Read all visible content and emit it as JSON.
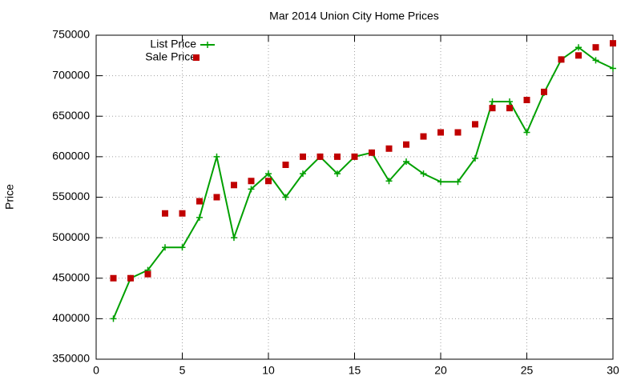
{
  "chart_data": {
    "type": "line",
    "title": "Mar 2014 Union City Home Prices",
    "y_label": "Price",
    "x": [
      1,
      2,
      3,
      4,
      5,
      6,
      7,
      8,
      9,
      10,
      11,
      12,
      13,
      14,
      15,
      16,
      17,
      18,
      19,
      20,
      21,
      22,
      23,
      24,
      25,
      26,
      27,
      28,
      29,
      30
    ],
    "series": [
      {
        "name": "List Price",
        "color": "#00a000",
        "style": "linespoints",
        "values": [
          400000,
          450000,
          460000,
          488000,
          488000,
          525000,
          600000,
          500000,
          560000,
          579000,
          550000,
          579000,
          600000,
          579000,
          600000,
          605000,
          570000,
          594000,
          579000,
          569000,
          569000,
          598000,
          668000,
          668000,
          630000,
          679000,
          720000,
          735000,
          719000,
          709000
        ]
      },
      {
        "name": "Sale Price",
        "color": "#c00000",
        "style": "points",
        "values": [
          450000,
          450000,
          455000,
          530000,
          530000,
          545000,
          550000,
          565000,
          570000,
          570000,
          590000,
          600000,
          600000,
          600000,
          600000,
          605000,
          610000,
          615000,
          625000,
          630000,
          630000,
          640000,
          660000,
          660000,
          670000,
          680000,
          720000,
          725000,
          735000,
          740000
        ]
      }
    ],
    "xlim": [
      0,
      30
    ],
    "xticks": [
      0,
      5,
      10,
      15,
      20,
      25,
      30
    ],
    "ylim": [
      350000,
      750000
    ],
    "yticks": [
      350000,
      400000,
      450000,
      500000,
      550000,
      600000,
      650000,
      700000,
      750000
    ],
    "grid": true,
    "legend": "top-left"
  }
}
